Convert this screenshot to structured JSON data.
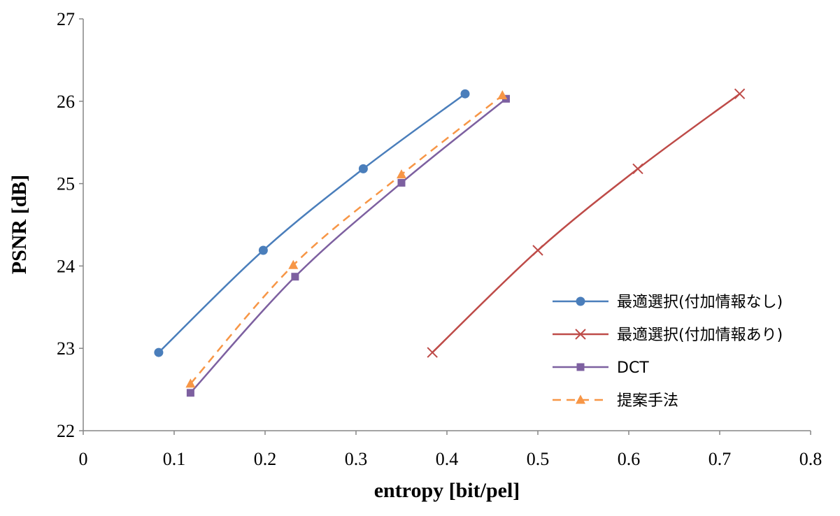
{
  "chart_data": {
    "type": "line",
    "xlabel": "entropy [bit/pel]",
    "ylabel": "PSNR [dB]",
    "xlim": [
      0,
      0.8
    ],
    "ylim": [
      22,
      27
    ],
    "xticks": [
      "0",
      "0.1",
      "0.2",
      "0.3",
      "0.4",
      "0.5",
      "0.6",
      "0.7",
      "0.8"
    ],
    "yticks": [
      "22",
      "23",
      "24",
      "25",
      "26",
      "27"
    ],
    "grid": false,
    "legend_position": "right",
    "series": [
      {
        "name": "最適選択(付加情報なし)",
        "color": "#4a7ebb",
        "marker": "circle",
        "dash": "solid",
        "x": [
          0.083,
          0.198,
          0.308,
          0.42
        ],
        "y": [
          22.95,
          24.19,
          25.18,
          26.09
        ]
      },
      {
        "name": "最適選択(付加情報あり)",
        "color": "#be4b48",
        "marker": "x",
        "dash": "solid",
        "x": [
          0.384,
          0.5,
          0.61,
          0.722
        ],
        "y": [
          22.95,
          24.19,
          25.18,
          26.09
        ]
      },
      {
        "name": "DCT",
        "color": "#7d60a0",
        "marker": "square",
        "dash": "solid",
        "x": [
          0.118,
          0.233,
          0.35,
          0.465
        ],
        "y": [
          22.46,
          23.87,
          25.01,
          26.03
        ]
      },
      {
        "name": "提案手法",
        "color": "#f79646",
        "marker": "triangle",
        "dash": "dashed",
        "x": [
          0.118,
          0.231,
          0.35,
          0.461
        ],
        "y": [
          22.57,
          24.01,
          25.11,
          26.07
        ]
      }
    ]
  }
}
